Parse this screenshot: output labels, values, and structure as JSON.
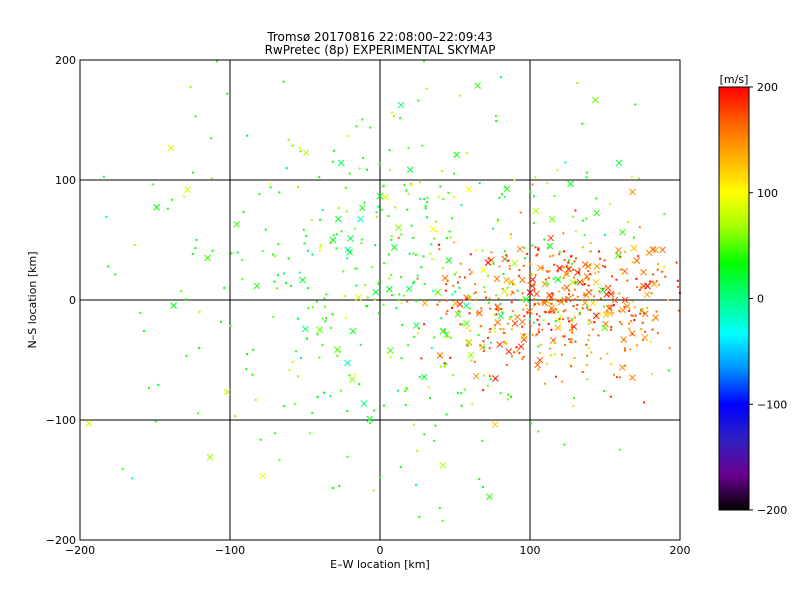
{
  "chart_data": {
    "type": "scatter",
    "title": "Tromsø 20170816 22:08:00–22:09:43",
    "subtitle": "RwPretec (8p) EXPERIMENTAL SKYMAP",
    "xlabel": "E–W location [km]",
    "ylabel": "N–S location [km]",
    "xlim": [
      -200,
      200
    ],
    "ylim": [
      -200,
      200
    ],
    "x_ticks": [
      -200,
      -100,
      0,
      100,
      200
    ],
    "y_ticks": [
      -200,
      -100,
      0,
      100,
      200
    ],
    "x_tick_labels": [
      "−200",
      "−100",
      "0",
      "100",
      "200"
    ],
    "y_tick_labels": [
      "−200",
      "−100",
      "0",
      "100",
      "200"
    ],
    "grid": true,
    "colorbar": {
      "label": "[m/s]",
      "min": -200,
      "max": 200,
      "ticks": [
        200,
        100,
        0,
        -100,
        -200
      ],
      "tick_labels": [
        "200",
        "100",
        "0",
        "−100",
        "−200"
      ],
      "colormap": [
        "#000000",
        "#6a0090",
        "#3020c0",
        "#0000ff",
        "#0090ff",
        "#00ffff",
        "#00ff80",
        "#00ff00",
        "#a0ff00",
        "#ffff00",
        "#ffb000",
        "#ff6000",
        "#ff0000"
      ]
    },
    "point_markers": [
      "dot",
      "cross"
    ],
    "clusters": [
      {
        "x": 120,
        "y": -2,
        "sx": 42,
        "sy": 30,
        "v": 160
      },
      {
        "x": 10,
        "y": 12,
        "sx": 80,
        "sy": 75,
        "v": 40
      }
    ]
  }
}
